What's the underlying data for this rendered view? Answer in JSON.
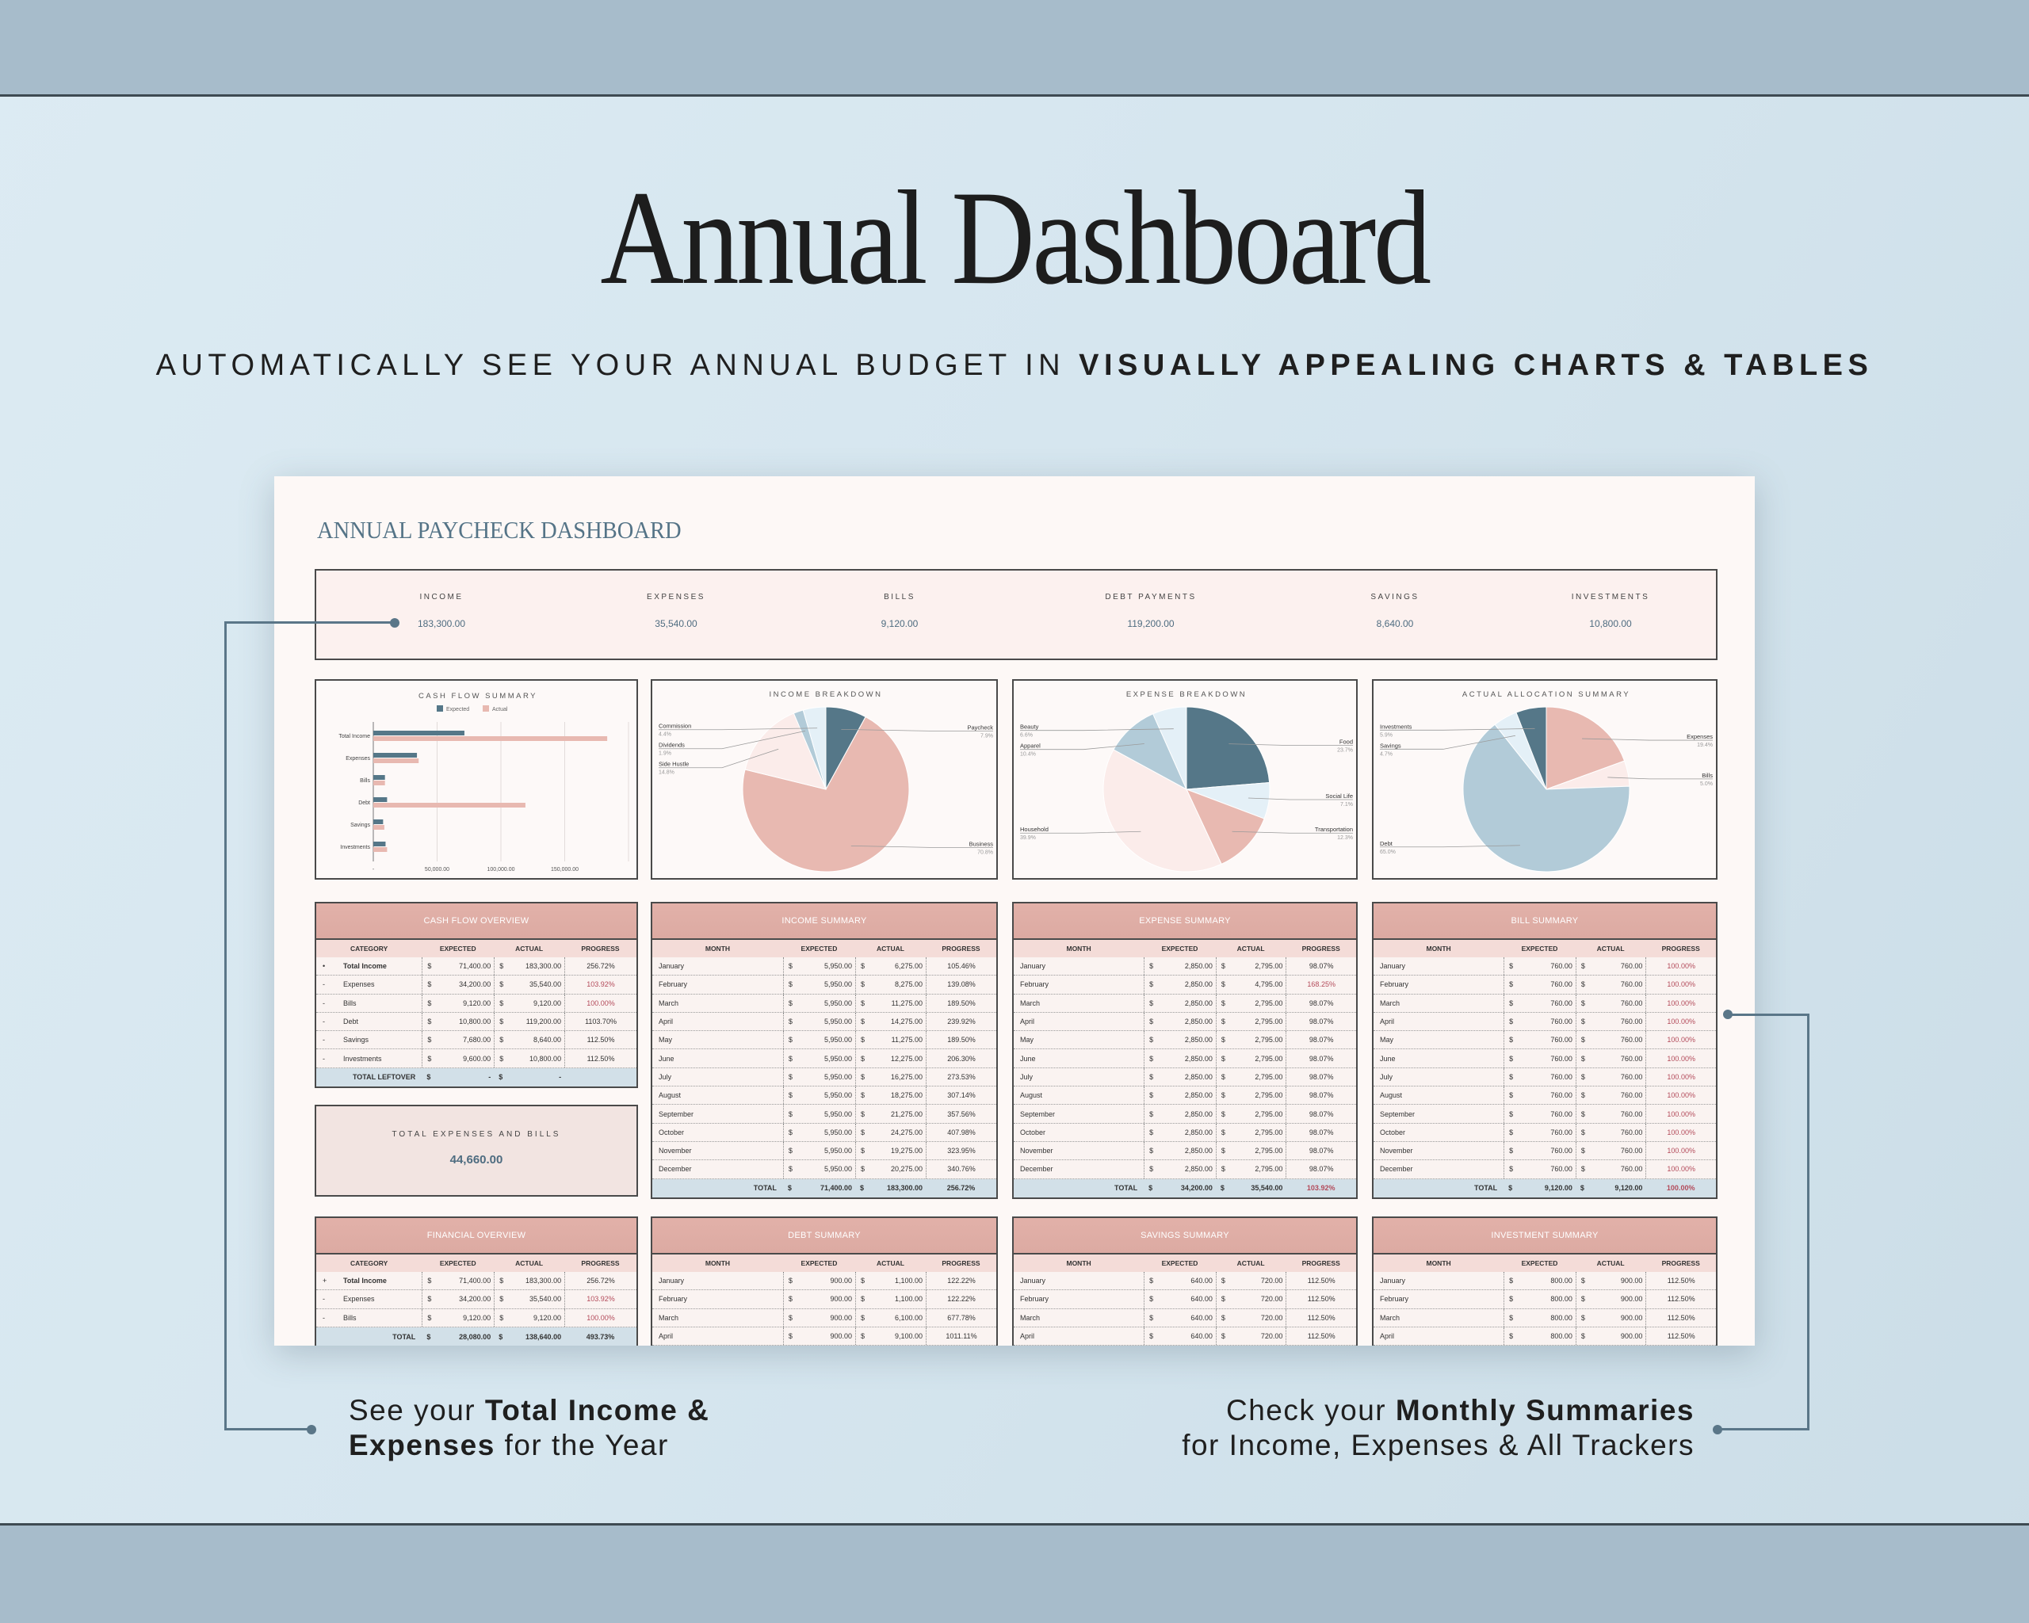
{
  "header": {
    "title": "Annual Dashboard",
    "subtitle_regular": "AUTOMATICALLY SEE YOUR ANNUAL BUDGET IN ",
    "subtitle_bold": "VISUALLY APPEALING CHARTS & TABLES"
  },
  "dashboard": {
    "title": "ANNUAL PAYCHECK DASHBOARD",
    "kpis": [
      {
        "label": "INCOME",
        "value": "183,300.00"
      },
      {
        "label": "EXPENSES",
        "value": "35,540.00"
      },
      {
        "label": "BILLS",
        "value": "9,120.00"
      },
      {
        "label": "DEBT PAYMENTS",
        "value": "119,200.00"
      },
      {
        "label": "SAVINGS",
        "value": "8,640.00"
      },
      {
        "label": "INVESTMENTS",
        "value": "10,800.00"
      }
    ]
  },
  "colors": {
    "dark_blue": "#557788",
    "pink": "#e8b9b1",
    "pale_pink": "#fbecea",
    "light_blue": "#b2cbd8",
    "very_light_blue": "#e4f0f7",
    "alert_red": "#b34a5a",
    "header_pink": "#dfaea6",
    "total_row_blue": "#d2e0e8"
  },
  "chart_data": [
    {
      "type": "bar",
      "orientation": "horizontal",
      "title": "CASH FLOW SUMMARY",
      "categories": [
        "Total Income",
        "Expenses",
        "Bills",
        "Debt",
        "Savings",
        "Investments"
      ],
      "series": [
        {
          "name": "Expected",
          "values": [
            71400,
            34200,
            9120,
            10800,
            7680,
            9600
          ]
        },
        {
          "name": "Actual",
          "values": [
            183300,
            35540,
            9120,
            119200,
            8640,
            10800
          ]
        }
      ],
      "xlim": [
        0,
        200000
      ],
      "tick_labels": [
        "-",
        "50,000.00",
        "100,000.00",
        "150,000.00"
      ],
      "ticks": [
        0,
        50000,
        100000,
        150000
      ],
      "grid": true,
      "legend": "top"
    },
    {
      "type": "pie",
      "title": "INCOME BREAKDOWN",
      "slices": [
        {
          "label": "Paycheck",
          "pct": "7.9%",
          "value": 7.9
        },
        {
          "label": "Business",
          "pct": "70.8%",
          "value": 70.8
        },
        {
          "label": "Side Hustle",
          "pct": "14.8%",
          "value": 14.8
        },
        {
          "label": "Dividends",
          "pct": "1.9%",
          "value": 1.9
        },
        {
          "label": "Commission",
          "pct": "4.4%",
          "value": 4.4
        }
      ],
      "slice_colors": [
        "#557788",
        "#e8b9b1",
        "#fbecea",
        "#b2cbd8",
        "#e4f0f7"
      ]
    },
    {
      "type": "pie",
      "title": "EXPENSE BREAKDOWN",
      "slices": [
        {
          "label": "Food",
          "pct": "23.7%",
          "value": 23.7
        },
        {
          "label": "Social Life",
          "pct": "7.1%",
          "value": 7.1
        },
        {
          "label": "Transportation",
          "pct": "12.3%",
          "value": 12.3
        },
        {
          "label": "Household",
          "pct": "39.9%",
          "value": 39.9
        },
        {
          "label": "Apparel",
          "pct": "10.4%",
          "value": 10.4
        },
        {
          "label": "Beauty",
          "pct": "6.6%",
          "value": 6.6
        }
      ],
      "slice_colors": [
        "#557788",
        "#e4f0f7",
        "#e8b9b1",
        "#fbecea",
        "#b2cbd8",
        "#e4f0f7"
      ]
    },
    {
      "type": "pie",
      "title": "ACTUAL ALLOCATION SUMMARY",
      "slices": [
        {
          "label": "Expenses",
          "pct": "19.4%",
          "value": 19.4
        },
        {
          "label": "Bills",
          "pct": "5.0%",
          "value": 5.0
        },
        {
          "label": "Debt",
          "pct": "65.0%",
          "value": 65.0
        },
        {
          "label": "Savings",
          "pct": "4.7%",
          "value": 4.7
        },
        {
          "label": "Investments",
          "pct": "5.9%",
          "value": 5.9
        }
      ],
      "slice_colors": [
        "#e8b9b1",
        "#fbecea",
        "#b2cbd8",
        "#e4f0f7",
        "#557788"
      ]
    }
  ],
  "tables": {
    "cash_flow_overview": {
      "title": "CASH FLOW OVERVIEW",
      "currency": "$",
      "columns": [
        "CATEGORY",
        "EXPECTED",
        "ACTUAL",
        "PROGRESS"
      ],
      "rows": [
        [
          "•",
          "Total Income",
          "71,400.00",
          "183,300.00",
          "256.72%"
        ],
        [
          "-",
          "Expenses",
          "34,200.00",
          "35,540.00",
          "103.92%",
          true
        ],
        [
          "-",
          "Bills",
          "9,120.00",
          "9,120.00",
          "100.00%",
          true
        ],
        [
          "-",
          "Debt",
          "10,800.00",
          "119,200.00",
          "1103.70%"
        ],
        [
          "-",
          "Savings",
          "7,680.00",
          "8,640.00",
          "112.50%"
        ],
        [
          "-",
          "Investments",
          "9,600.00",
          "10,800.00",
          "112.50%"
        ]
      ],
      "total": [
        "TOTAL LEFTOVER",
        "-",
        "-",
        ""
      ]
    },
    "income_summary": {
      "title": "INCOME SUMMARY",
      "currency": "$",
      "columns": [
        "MONTH",
        "EXPECTED",
        "ACTUAL",
        "PROGRESS"
      ],
      "rows": [
        [
          "January",
          "5,950.00",
          "6,275.00",
          "105.46%"
        ],
        [
          "February",
          "5,950.00",
          "8,275.00",
          "139.08%"
        ],
        [
          "March",
          "5,950.00",
          "11,275.00",
          "189.50%"
        ],
        [
          "April",
          "5,950.00",
          "14,275.00",
          "239.92%"
        ],
        [
          "May",
          "5,950.00",
          "11,275.00",
          "189.50%"
        ],
        [
          "June",
          "5,950.00",
          "12,275.00",
          "206.30%"
        ],
        [
          "July",
          "5,950.00",
          "16,275.00",
          "273.53%"
        ],
        [
          "August",
          "5,950.00",
          "18,275.00",
          "307.14%"
        ],
        [
          "September",
          "5,950.00",
          "21,275.00",
          "357.56%"
        ],
        [
          "October",
          "5,950.00",
          "24,275.00",
          "407.98%"
        ],
        [
          "November",
          "5,950.00",
          "19,275.00",
          "323.95%"
        ],
        [
          "December",
          "5,950.00",
          "20,275.00",
          "340.76%"
        ]
      ],
      "total": [
        "TOTAL",
        "71,400.00",
        "183,300.00",
        "256.72%"
      ]
    },
    "expense_summary": {
      "title": "EXPENSE SUMMARY",
      "currency": "$",
      "columns": [
        "MONTH",
        "EXPECTED",
        "ACTUAL",
        "PROGRESS"
      ],
      "rows": [
        [
          "January",
          "2,850.00",
          "2,795.00",
          "98.07%"
        ],
        [
          "February",
          "2,850.00",
          "4,795.00",
          "168.25%",
          true
        ],
        [
          "March",
          "2,850.00",
          "2,795.00",
          "98.07%"
        ],
        [
          "April",
          "2,850.00",
          "2,795.00",
          "98.07%"
        ],
        [
          "May",
          "2,850.00",
          "2,795.00",
          "98.07%"
        ],
        [
          "June",
          "2,850.00",
          "2,795.00",
          "98.07%"
        ],
        [
          "July",
          "2,850.00",
          "2,795.00",
          "98.07%"
        ],
        [
          "August",
          "2,850.00",
          "2,795.00",
          "98.07%"
        ],
        [
          "September",
          "2,850.00",
          "2,795.00",
          "98.07%"
        ],
        [
          "October",
          "2,850.00",
          "2,795.00",
          "98.07%"
        ],
        [
          "November",
          "2,850.00",
          "2,795.00",
          "98.07%"
        ],
        [
          "December",
          "2,850.00",
          "2,795.00",
          "98.07%"
        ]
      ],
      "total": [
        "TOTAL",
        "34,200.00",
        "35,540.00",
        "103.92%",
        true
      ]
    },
    "bill_summary": {
      "title": "BILL SUMMARY",
      "currency": "$",
      "columns": [
        "MONTH",
        "EXPECTED",
        "ACTUAL",
        "PROGRESS"
      ],
      "rows": [
        [
          "January",
          "760.00",
          "760.00",
          "100.00%",
          true
        ],
        [
          "February",
          "760.00",
          "760.00",
          "100.00%",
          true
        ],
        [
          "March",
          "760.00",
          "760.00",
          "100.00%",
          true
        ],
        [
          "April",
          "760.00",
          "760.00",
          "100.00%",
          true
        ],
        [
          "May",
          "760.00",
          "760.00",
          "100.00%",
          true
        ],
        [
          "June",
          "760.00",
          "760.00",
          "100.00%",
          true
        ],
        [
          "July",
          "760.00",
          "760.00",
          "100.00%",
          true
        ],
        [
          "August",
          "760.00",
          "760.00",
          "100.00%",
          true
        ],
        [
          "September",
          "760.00",
          "760.00",
          "100.00%",
          true
        ],
        [
          "October",
          "760.00",
          "760.00",
          "100.00%",
          true
        ],
        [
          "November",
          "760.00",
          "760.00",
          "100.00%",
          true
        ],
        [
          "December",
          "760.00",
          "760.00",
          "100.00%",
          true
        ]
      ],
      "total": [
        "TOTAL",
        "9,120.00",
        "9,120.00",
        "100.00%",
        true
      ]
    },
    "financial_overview": {
      "title": "FINANCIAL OVERVIEW",
      "currency": "$",
      "columns": [
        "CATEGORY",
        "EXPECTED",
        "ACTUAL",
        "PROGRESS"
      ],
      "rows": [
        [
          "+",
          "Total Income",
          "71,400.00",
          "183,300.00",
          "256.72%"
        ],
        [
          "-",
          "Expenses",
          "34,200.00",
          "35,540.00",
          "103.92%",
          true
        ],
        [
          "-",
          "Bills",
          "9,120.00",
          "9,120.00",
          "100.00%",
          true
        ]
      ],
      "total": [
        "TOTAL",
        "28,080.00",
        "138,640.00",
        "493.73%"
      ]
    },
    "debt_summary": {
      "title": "DEBT SUMMARY",
      "currency": "$",
      "columns": [
        "MONTH",
        "EXPECTED",
        "ACTUAL",
        "PROGRESS"
      ],
      "rows": [
        [
          "January",
          "900.00",
          "1,100.00",
          "122.22%"
        ],
        [
          "February",
          "900.00",
          "1,100.00",
          "122.22%"
        ],
        [
          "March",
          "900.00",
          "6,100.00",
          "677.78%"
        ],
        [
          "April",
          "900.00",
          "9,100.00",
          "1011.11%"
        ]
      ]
    },
    "savings_summary": {
      "title": "SAVINGS SUMMARY",
      "currency": "$",
      "columns": [
        "MONTH",
        "EXPECTED",
        "ACTUAL",
        "PROGRESS"
      ],
      "rows": [
        [
          "January",
          "640.00",
          "720.00",
          "112.50%"
        ],
        [
          "February",
          "640.00",
          "720.00",
          "112.50%"
        ],
        [
          "March",
          "640.00",
          "720.00",
          "112.50%"
        ],
        [
          "April",
          "640.00",
          "720.00",
          "112.50%"
        ]
      ]
    },
    "investment_summary": {
      "title": "INVESTMENT SUMMARY",
      "currency": "$",
      "columns": [
        "MONTH",
        "EXPECTED",
        "ACTUAL",
        "PROGRESS"
      ],
      "rows": [
        [
          "January",
          "800.00",
          "900.00",
          "112.50%"
        ],
        [
          "February",
          "800.00",
          "900.00",
          "112.50%"
        ],
        [
          "March",
          "800.00",
          "900.00",
          "112.50%"
        ],
        [
          "April",
          "800.00",
          "900.00",
          "112.50%"
        ]
      ]
    }
  },
  "total_expenses_bills": {
    "label": "TOTAL EXPENSES AND BILLS",
    "value": "44,660.00"
  },
  "captions": {
    "left": {
      "pre": "See your ",
      "bold1": "Total Income &",
      "bold2": "Expenses",
      "post": " for the Year"
    },
    "right": {
      "pre": "Check your ",
      "bold": "Monthly Summaries",
      "line2": "for Income, Expenses & All Trackers"
    }
  }
}
